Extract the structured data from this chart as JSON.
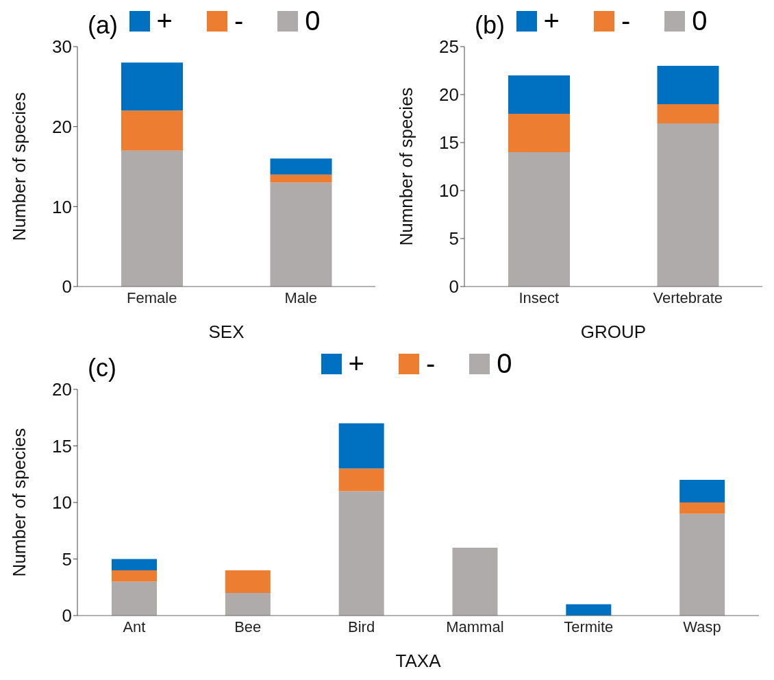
{
  "chart_data": [
    {
      "type": "bar",
      "stacked": true,
      "annotations": [
        "(a)"
      ],
      "xlabel": "SEX",
      "ylabel": "Number of species",
      "categories": [
        "Female",
        "Male"
      ],
      "ylim": [
        0,
        30
      ],
      "yticks": [
        0,
        10,
        20,
        30
      ],
      "legend": "top",
      "grid": false,
      "series": [
        {
          "name": "0",
          "color": "#afabab",
          "values": [
            17,
            13
          ]
        },
        {
          "name": "-",
          "color": "#ed7d31",
          "values": [
            5,
            1
          ]
        },
        {
          "name": "+",
          "color": "#0070c0",
          "values": [
            6,
            2
          ]
        }
      ]
    },
    {
      "type": "bar",
      "stacked": true,
      "annotations": [
        "(b)"
      ],
      "xlabel": "GROUP",
      "ylabel": "Numnber of species",
      "categories": [
        "Insect",
        "Vertebrate"
      ],
      "ylim": [
        0,
        25
      ],
      "yticks": [
        0,
        5,
        10,
        15,
        20,
        25
      ],
      "legend": "top",
      "grid": false,
      "series": [
        {
          "name": "0",
          "color": "#afabab",
          "values": [
            14,
            17
          ]
        },
        {
          "name": "-",
          "color": "#ed7d31",
          "values": [
            4,
            2
          ]
        },
        {
          "name": "+",
          "color": "#0070c0",
          "values": [
            4,
            4
          ]
        }
      ]
    },
    {
      "type": "bar",
      "stacked": true,
      "annotations": [
        "(c)"
      ],
      "xlabel": "TAXA",
      "ylabel": "Number of species",
      "categories": [
        "Ant",
        "Bee",
        "Bird",
        "Mammal",
        "Termite",
        "Wasp"
      ],
      "ylim": [
        0,
        20
      ],
      "yticks": [
        0,
        5,
        10,
        15,
        20
      ],
      "legend": "top",
      "grid": false,
      "series": [
        {
          "name": "0",
          "color": "#afabab",
          "values": [
            3,
            2,
            11,
            6,
            0,
            9
          ]
        },
        {
          "name": "-",
          "color": "#ed7d31",
          "values": [
            1,
            2,
            2,
            0,
            0,
            1
          ]
        },
        {
          "name": "+",
          "color": "#0070c0",
          "values": [
            1,
            0,
            4,
            0,
            1,
            2
          ]
        }
      ]
    }
  ]
}
